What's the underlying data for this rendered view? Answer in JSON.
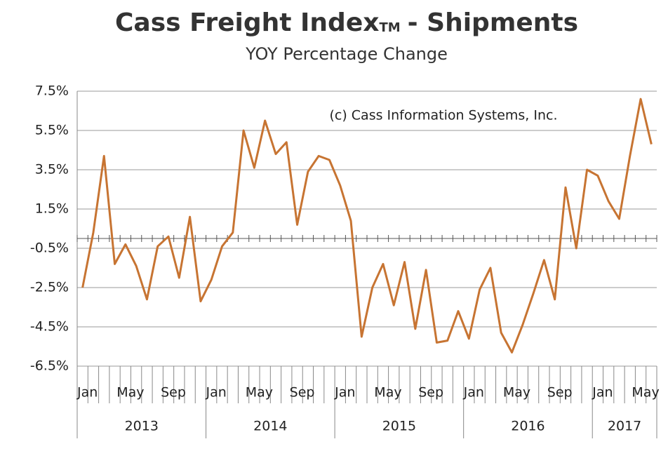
{
  "chart_data": {
    "type": "line",
    "title": {
      "main": "Cass Freight Index",
      "mark": "TM",
      "rest": "- Shipments"
    },
    "subtitle": "YOY Percentage Change",
    "annotation": "(c) Cass Information Systems, Inc.",
    "categories": [
      "Jan",
      null,
      null,
      null,
      "May",
      null,
      null,
      null,
      "Sep",
      null,
      null,
      null,
      "Jan",
      null,
      null,
      null,
      "May",
      null,
      null,
      null,
      "Sep",
      null,
      null,
      null,
      "Jan",
      null,
      null,
      null,
      "May",
      null,
      null,
      null,
      "Sep",
      null,
      null,
      null,
      "Jan",
      null,
      null,
      null,
      "May",
      null,
      null,
      null,
      "Sep",
      null,
      null,
      null,
      "Jan",
      null,
      null,
      null,
      "May",
      null
    ],
    "years": [
      "2013",
      "2014",
      "2015",
      "2016",
      "2017"
    ],
    "series": [
      {
        "color": "#c77432",
        "values": [
          -2.5,
          0.3,
          4.2,
          -1.3,
          -0.3,
          -1.4,
          -3.1,
          -0.4,
          0.1,
          -2.0,
          1.1,
          -3.2,
          -2.1,
          -0.4,
          0.3,
          5.5,
          3.6,
          6.0,
          4.3,
          4.9,
          0.7,
          3.4,
          4.2,
          4.0,
          2.7,
          0.9,
          -5.0,
          -2.5,
          -1.3,
          -3.4,
          -1.2,
          -4.6,
          -1.6,
          -5.3,
          -5.2,
          -3.7,
          -5.1,
          -2.6,
          -1.5,
          -4.8,
          -5.8,
          -4.4,
          -2.8,
          -1.1,
          -3.1,
          2.6,
          -0.5,
          3.5,
          3.2,
          1.9,
          1.0,
          4.2,
          7.1,
          4.8
        ]
      }
    ],
    "ylim": [
      -6.5,
      7.5
    ],
    "yticks": [
      {
        "value": -6.5,
        "label": "-6.5%"
      },
      {
        "value": -4.5,
        "label": "-4.5%"
      },
      {
        "value": -2.5,
        "label": "-2.5%"
      },
      {
        "value": -0.5,
        "label": "-0.5%"
      },
      {
        "value": 1.5,
        "label": "1.5%"
      },
      {
        "value": 3.5,
        "label": "3.5%"
      },
      {
        "value": 5.5,
        "label": "5.5%"
      },
      {
        "value": 7.5,
        "label": "7.5%"
      }
    ],
    "grid": true
  }
}
